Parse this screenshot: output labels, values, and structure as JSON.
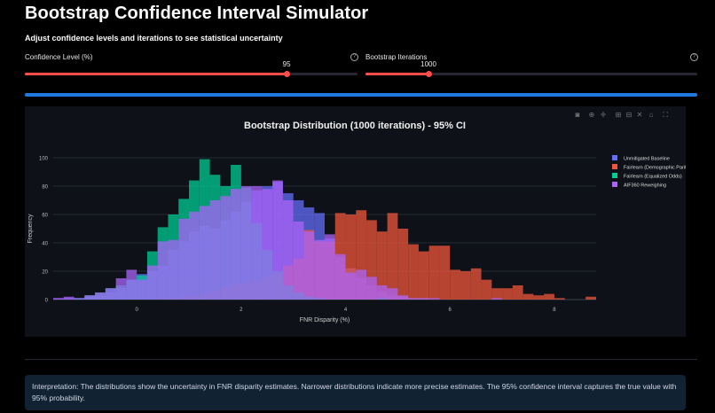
{
  "header": {
    "title": "Bootstrap Confidence Interval Simulator",
    "subtitle": "Adjust confidence levels and iterations to see statistical uncertainty"
  },
  "sliders": [
    {
      "label": "Confidence Level (%)",
      "value": "95",
      "fraction": 0.787,
      "help_icon": "question-circle-icon"
    },
    {
      "label": "Bootstrap Iterations",
      "value": "1000",
      "fraction": 0.19,
      "help_icon": "question-circle-icon"
    }
  ],
  "progress": {
    "percent": 100,
    "color": "#1f7ae0"
  },
  "toolbar": {
    "icons": [
      "camera-icon",
      "zoom-icon",
      "pan-icon",
      "zoom-in-icon",
      "zoom-out-icon",
      "autoscale-icon",
      "home-icon",
      "fullscreen-icon"
    ]
  },
  "chart_data": {
    "type": "bar",
    "title": "Bootstrap Distribution (1000 iterations) - 95% CI",
    "xlabel": "FNR Disparity (%)",
    "ylabel": "Frequency",
    "xlim": [
      -1.6,
      8.8
    ],
    "ylim": [
      0,
      105
    ],
    "xticks": [
      0,
      2,
      4,
      6,
      8
    ],
    "yticks": [
      0,
      20,
      40,
      60,
      80,
      100
    ],
    "bin_width": 0.2,
    "grid": true,
    "barmode": "overlay",
    "legend_position": "top-right",
    "series": [
      {
        "name": "Unmitigated Baseline",
        "color": "#636efa",
        "bin_start": -1.6,
        "values": [
          1,
          1,
          1,
          2,
          3,
          5,
          8,
          14,
          18,
          20,
          24,
          35,
          41,
          48,
          52,
          50,
          56,
          62,
          69,
          77,
          80,
          83,
          75,
          70,
          65,
          61,
          43,
          30,
          22,
          15,
          10,
          6,
          3,
          2,
          1,
          1
        ]
      },
      {
        "name": "Fairlearn (Demographic Parity)",
        "color": "#ef553b",
        "bin_start": 0.4,
        "values": [
          1,
          1,
          2,
          3,
          4,
          6,
          8,
          11,
          11,
          13,
          16,
          19,
          24,
          29,
          49,
          41,
          41,
          61,
          60,
          63,
          56,
          48,
          61,
          50,
          39,
          34,
          38,
          38,
          21,
          20,
          22,
          14,
          8,
          8,
          10,
          4,
          3,
          4,
          1,
          0,
          0,
          2
        ]
      },
      {
        "name": "Fairlearn (Equalized Odds)",
        "color": "#00cc96",
        "bin_start": -1.2,
        "values": [
          1,
          3,
          5,
          8,
          10,
          14,
          17,
          34,
          51,
          60,
          71,
          84,
          99,
          88,
          80,
          95,
          79,
          54,
          35,
          20,
          10,
          5,
          2,
          1,
          0,
          0,
          0,
          0,
          0,
          1
        ]
      },
      {
        "name": "AIF360 Reweighing",
        "color": "#ab63fa",
        "bin_start": -1.6,
        "values": [
          1,
          2,
          1,
          3,
          5,
          8,
          15,
          21,
          14,
          24,
          41,
          42,
          57,
          62,
          66,
          70,
          73,
          78,
          80,
          80,
          78,
          84,
          70,
          55,
          48,
          42,
          46,
          32,
          19,
          21,
          16,
          10,
          8,
          3,
          1,
          1,
          1,
          0,
          0,
          0,
          0,
          0,
          1
        ]
      }
    ]
  },
  "interpretation": "Interpretation: The distributions show the uncertainty in FNR disparity estimates. Narrower distributions indicate more precise estimates. The 95% confidence interval captures the true value with 95% probability."
}
